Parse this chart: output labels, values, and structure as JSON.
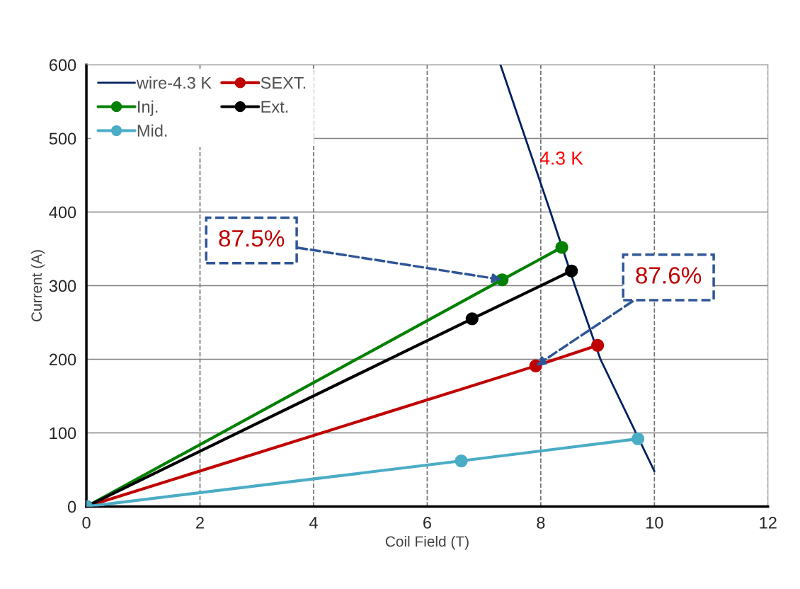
{
  "chart_data": {
    "type": "line",
    "xlabel": "Coil Field (T)",
    "ylabel": "Current (A)",
    "xlim": [
      0,
      12
    ],
    "ylim": [
      0,
      600
    ],
    "xticks": [
      0,
      2,
      4,
      6,
      8,
      10,
      12
    ],
    "yticks": [
      0,
      100,
      200,
      300,
      400,
      500,
      600
    ],
    "grid": true,
    "legend": "top left",
    "series": [
      {
        "name": "wire-4.3 K",
        "color": "#002060",
        "marker": "none",
        "x": [
          7.29,
          8.17,
          8.6,
          9.05,
          10
        ],
        "values": [
          600,
          400,
          300,
          200,
          48
        ]
      },
      {
        "name": "SEXT.",
        "color": "#c00000",
        "marker": "circle",
        "x": [
          0,
          7.91,
          9.0
        ],
        "values": [
          0,
          191,
          219
        ]
      },
      {
        "name": "Inj.",
        "color": "#008000",
        "marker": "circle",
        "x": [
          0,
          7.32,
          8.37
        ],
        "values": [
          0,
          308,
          352
        ]
      },
      {
        "name": "Ext.",
        "color": "#000000",
        "marker": "circle",
        "x": [
          0,
          6.79,
          8.54
        ],
        "values": [
          0,
          255,
          320
        ]
      },
      {
        "name": "Mid.",
        "color": "#4bacc6",
        "marker": "circle",
        "x": [
          0,
          6.6,
          9.71
        ],
        "values": [
          0,
          62,
          92
        ]
      }
    ],
    "annotations": [
      "4.3 K",
      {
        "text": "87.5%",
        "x": 7.32,
        "y": 308
      },
      {
        "text": "87.6%",
        "x": 7.91,
        "y": 191
      }
    ]
  }
}
